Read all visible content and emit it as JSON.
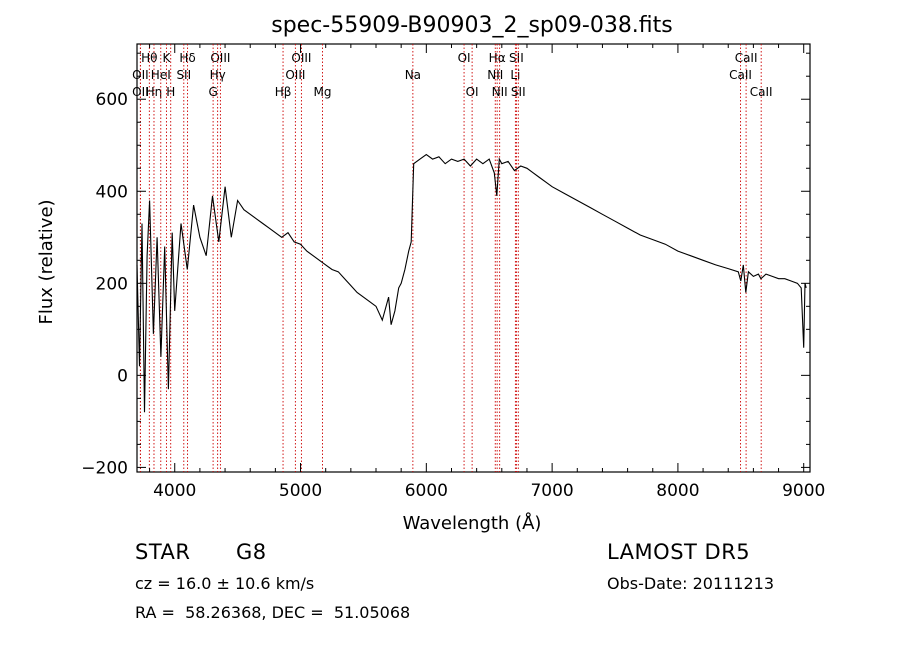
{
  "chart_data": {
    "type": "line",
    "title": "spec-55909-B90903_2_sp09-038.fits",
    "xlabel": "Wavelength (Å)",
    "ylabel": "Flux (relative)",
    "xlim": [
      3700,
      9050
    ],
    "ylim": [
      -210,
      720
    ],
    "x_ticks": [
      4000,
      5000,
      6000,
      7000,
      8000,
      9000
    ],
    "y_ticks": [
      -200,
      0,
      200,
      400,
      600
    ],
    "grid": false,
    "line_color": "#000000",
    "marker_color": "#cc0000",
    "series": [
      {
        "x": [
          3700,
          3720,
          3740,
          3760,
          3780,
          3800,
          3830,
          3860,
          3890,
          3920,
          3950,
          3980,
          4000,
          4050,
          4100,
          4150,
          4200,
          4250,
          4300,
          4350,
          4400,
          4450,
          4500,
          4550,
          4600,
          4650,
          4700,
          4750,
          4800,
          4850,
          4900,
          4950,
          5000,
          5050,
          5100,
          5150,
          5200,
          5250,
          5300,
          5350,
          5400,
          5450,
          5500,
          5550,
          5600,
          5650,
          5700,
          5720,
          5750,
          5780,
          5800,
          5830,
          5860,
          5880,
          5900,
          5950,
          6000,
          6050,
          6100,
          6150,
          6200,
          6250,
          6300,
          6350,
          6400,
          6450,
          6500,
          6540,
          6560,
          6580,
          6600,
          6650,
          6700,
          6750,
          6800,
          6850,
          6900,
          6950,
          7000,
          7100,
          7200,
          7300,
          7400,
          7500,
          7600,
          7700,
          7800,
          7900,
          8000,
          8100,
          8200,
          8300,
          8400,
          8480,
          8500,
          8520,
          8540,
          8560,
          8600,
          8640,
          8660,
          8700,
          8750,
          8800,
          8850,
          8900,
          8950,
          8980,
          9000,
          9010,
          9020
        ],
        "y": [
          240,
          20,
          330,
          -80,
          260,
          380,
          90,
          300,
          40,
          280,
          -30,
          310,
          140,
          330,
          230,
          370,
          300,
          260,
          390,
          290,
          410,
          300,
          380,
          360,
          350,
          340,
          330,
          320,
          310,
          300,
          310,
          290,
          285,
          270,
          260,
          250,
          240,
          230,
          225,
          210,
          195,
          180,
          170,
          160,
          150,
          120,
          170,
          110,
          140,
          190,
          200,
          230,
          270,
          290,
          460,
          470,
          480,
          470,
          475,
          460,
          470,
          465,
          470,
          455,
          470,
          460,
          470,
          440,
          390,
          470,
          460,
          465,
          445,
          455,
          450,
          440,
          430,
          420,
          410,
          395,
          380,
          365,
          350,
          335,
          320,
          305,
          295,
          285,
          270,
          260,
          250,
          240,
          232,
          225,
          205,
          240,
          180,
          225,
          215,
          220,
          210,
          220,
          215,
          210,
          210,
          205,
          200,
          190,
          60,
          200,
          190
        ]
      }
    ],
    "lines": [
      {
        "label": "Hθ",
        "x": 3798,
        "row": 0
      },
      {
        "label": "OII",
        "x": 3727,
        "row": 1
      },
      {
        "label": "OII",
        "x": 3727,
        "row": 2
      },
      {
        "label": "Hη",
        "x": 3835,
        "row": 2
      },
      {
        "label": "HeI",
        "x": 3889,
        "row": 1
      },
      {
        "label": "K",
        "x": 3934,
        "row": 0
      },
      {
        "label": "H",
        "x": 3968,
        "row": 2
      },
      {
        "label": "Hδ",
        "x": 4102,
        "row": 0
      },
      {
        "label": "SII",
        "x": 4072,
        "row": 1
      },
      {
        "label": "OIII",
        "x": 4363,
        "row": 0
      },
      {
        "label": "Hγ",
        "x": 4341,
        "row": 1
      },
      {
        "label": "G",
        "x": 4305,
        "row": 2
      },
      {
        "label": "Hβ",
        "x": 4861,
        "row": 2
      },
      {
        "label": "OIII",
        "x": 5007,
        "row": 0
      },
      {
        "label": "OIII",
        "x": 4959,
        "row": 1
      },
      {
        "label": "Mg",
        "x": 5175,
        "row": 2
      },
      {
        "label": "Na",
        "x": 5893,
        "row": 1
      },
      {
        "label": "OI",
        "x": 6300,
        "row": 0
      },
      {
        "label": "OI",
        "x": 6364,
        "row": 2
      },
      {
        "label": "Hα",
        "x": 6563,
        "row": 0
      },
      {
        "label": "NII",
        "x": 6548,
        "row": 1
      },
      {
        "label": "NII",
        "x": 6583,
        "row": 2
      },
      {
        "label": "SII",
        "x": 6716,
        "row": 0
      },
      {
        "label": "Li",
        "x": 6708,
        "row": 1
      },
      {
        "label": "SII",
        "x": 6731,
        "row": 2
      },
      {
        "label": "CaII",
        "x": 8542,
        "row": 0
      },
      {
        "label": "CaII",
        "x": 8498,
        "row": 1
      },
      {
        "label": "CaII",
        "x": 8662,
        "row": 2
      }
    ]
  },
  "info": {
    "class": "STAR",
    "subclass": "G8",
    "cz": "cz = 16.0 ± 10.6 km/s",
    "radec": "RA =  58.26368, DEC =  51.05068",
    "survey": "LAMOST DR5",
    "obsdate": "Obs-Date: 20111213"
  }
}
